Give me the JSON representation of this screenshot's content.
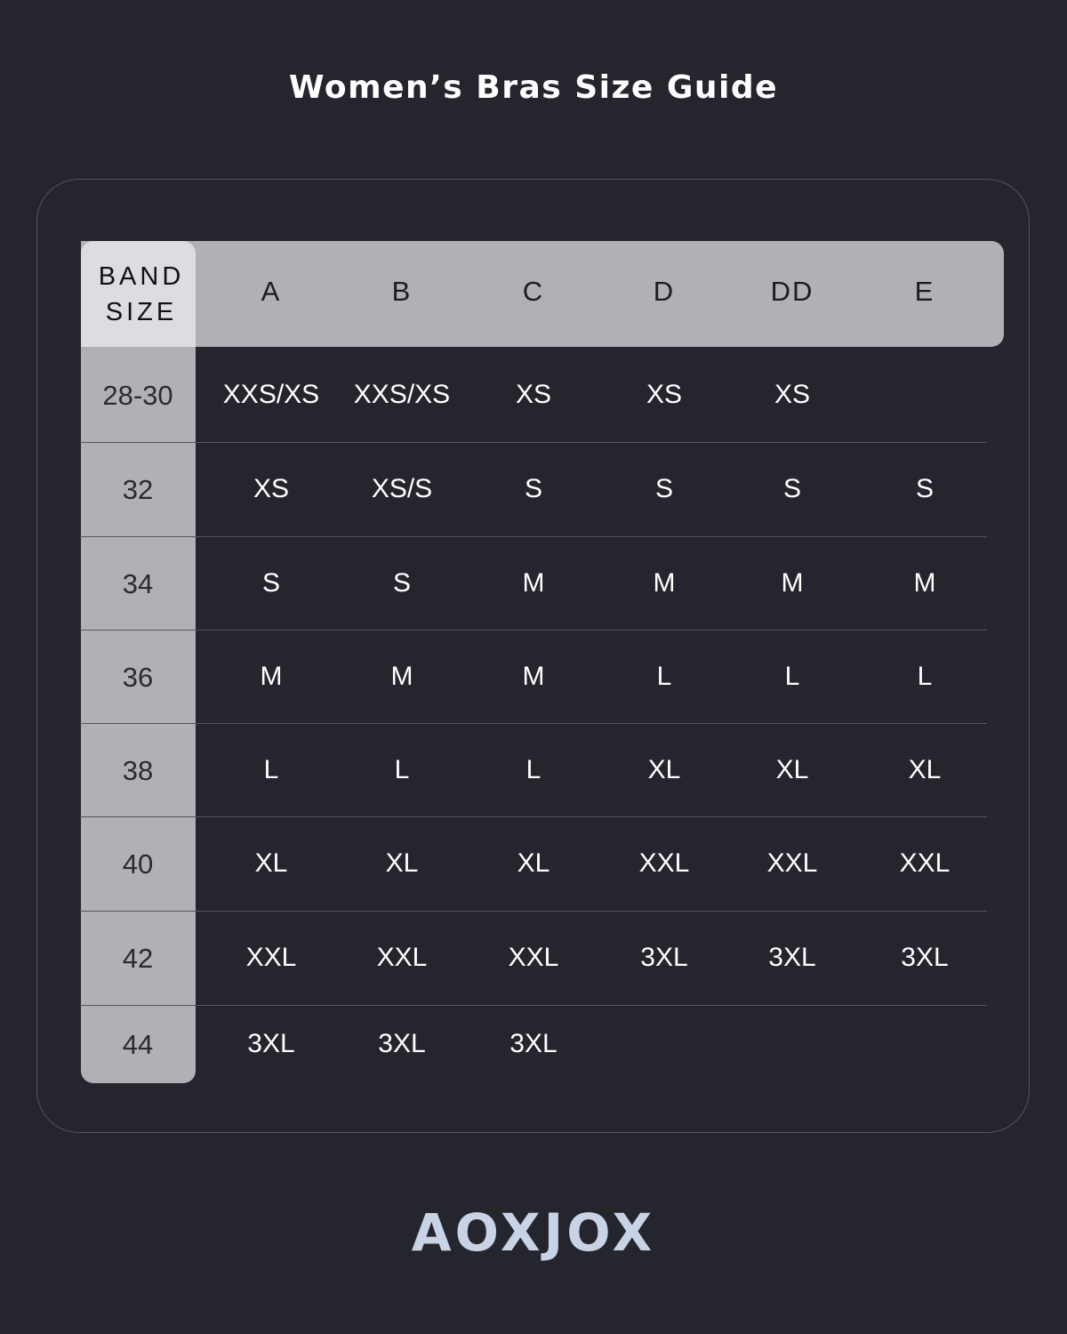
{
  "title": "Women’s Bras Size Guide",
  "colors": {
    "background": "#24252d",
    "header": "#b0b1b5",
    "band_header": "#dcdde0",
    "logo": "#c8d3e6"
  },
  "table": {
    "band_header": [
      "BAND",
      "SIZE"
    ],
    "cup_headers": [
      "A",
      "B",
      "C",
      "D",
      "DD",
      "E"
    ],
    "rows": [
      {
        "band": "28-30",
        "sizes": [
          "XXS/XS",
          "XXS/XS",
          "XS",
          "XS",
          "XS",
          ""
        ]
      },
      {
        "band": "32",
        "sizes": [
          "XS",
          "XS/S",
          "S",
          "S",
          "S",
          "S"
        ]
      },
      {
        "band": "34",
        "sizes": [
          "S",
          "S",
          "M",
          "M",
          "M",
          "M"
        ]
      },
      {
        "band": "36",
        "sizes": [
          "M",
          "M",
          "M",
          "L",
          "L",
          "L"
        ]
      },
      {
        "band": "38",
        "sizes": [
          "L",
          "L",
          "L",
          "XL",
          "XL",
          "XL"
        ]
      },
      {
        "band": "40",
        "sizes": [
          "XL",
          "XL",
          "XL",
          "XXL",
          "XXL",
          "XXL"
        ]
      },
      {
        "band": "42",
        "sizes": [
          "XXL",
          "XXL",
          "XXL",
          "3XL",
          "3XL",
          "3XL"
        ]
      },
      {
        "band": "44",
        "sizes": [
          "3XL",
          "3XL",
          "3XL",
          "",
          "",
          ""
        ]
      }
    ]
  },
  "logo": "AOXJOX"
}
